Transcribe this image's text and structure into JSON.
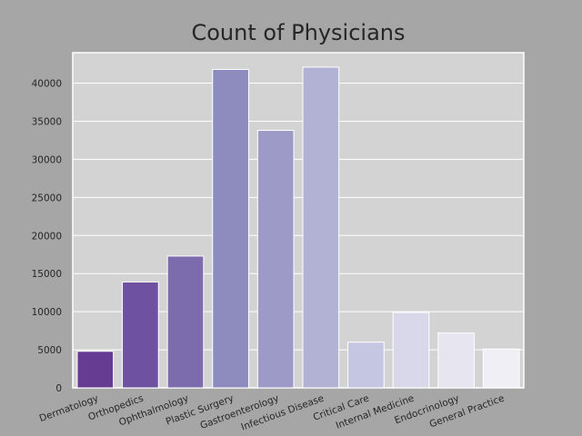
{
  "chart_data": {
    "type": "bar",
    "title": "Count of Physicians",
    "xlabel": "",
    "ylabel": "",
    "categories": [
      "Dermatology",
      "Orthopedics",
      "Ophthalmology",
      "Plastic Surgery",
      "Gastroenterology",
      "Infectious Disease",
      "Critical Care",
      "Internal Medicine",
      "Endocrinology",
      "General Practice"
    ],
    "values": [
      4800,
      13900,
      17300,
      41800,
      33800,
      42100,
      6000,
      9900,
      7200,
      5100
    ],
    "ylim": [
      0,
      44000
    ],
    "yticks": [
      0,
      5000,
      10000,
      15000,
      20000,
      25000,
      30000,
      35000,
      40000
    ],
    "grid": true,
    "bar_colors": [
      "#663c92",
      "#6f51a1",
      "#7d6cad",
      "#8e8cbf",
      "#9e9ac8",
      "#b2b2d5",
      "#c5c6e2",
      "#d8d8ea",
      "#e6e5f0",
      "#f0eff5"
    ],
    "plot_background": "#d3d3d3",
    "grid_color": "#ffffff"
  }
}
